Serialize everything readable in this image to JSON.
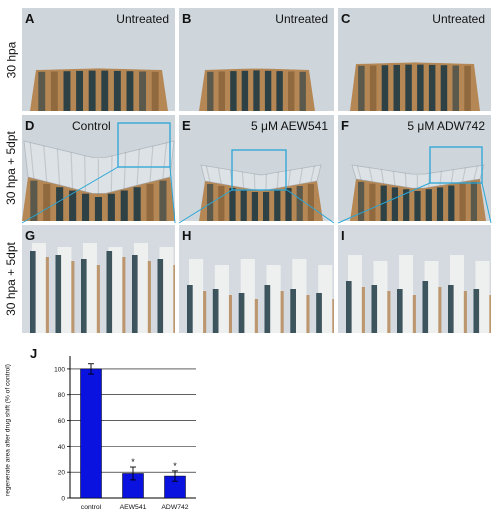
{
  "figure": {
    "rows": [
      {
        "label": "30 hpa"
      },
      {
        "label": "30 hpa + 5dpt"
      },
      {
        "label": "30 hpa + 5dpt"
      }
    ],
    "panels": [
      {
        "letter": "A",
        "caption": "Untreated"
      },
      {
        "letter": "B",
        "caption": "Untreated"
      },
      {
        "letter": "C",
        "caption": "Untreated"
      },
      {
        "letter": "D",
        "caption": "Control"
      },
      {
        "letter": "E",
        "caption": "5 μM AEW541"
      },
      {
        "letter": "F",
        "caption": "5 μM ADW742"
      },
      {
        "letter": "G",
        "caption": ""
      },
      {
        "letter": "H",
        "caption": ""
      },
      {
        "letter": "I",
        "caption": ""
      }
    ],
    "colors": {
      "background": "#cfd6dc",
      "ray_dark": "#1f3a44",
      "ray_orange": "#b0793d",
      "inset_box": "#2aa6d6",
      "bar_fill": "#0a12e0"
    }
  },
  "chart_data": {
    "type": "bar",
    "panel_letter": "J",
    "categories": [
      "control",
      "AEW541",
      "ADW742"
    ],
    "values": [
      100,
      19,
      17
    ],
    "errors": [
      4,
      5,
      4
    ],
    "significance": [
      "",
      "*",
      "*"
    ],
    "ylabel": "regenerate area after drug shift (% of control)",
    "xlabel": "",
    "ylim": [
      0,
      110
    ],
    "yticks": [
      0,
      20,
      40,
      60,
      80,
      100
    ],
    "grid": true
  }
}
